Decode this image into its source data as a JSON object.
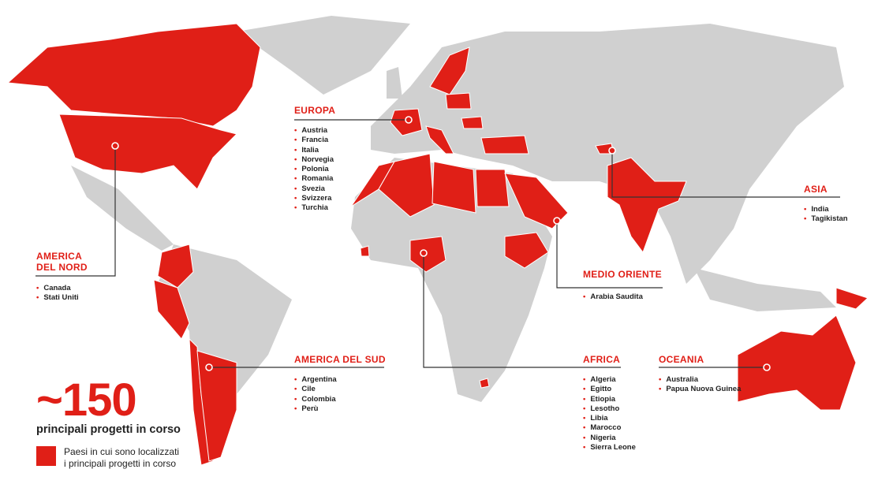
{
  "colors": {
    "highlight": "#e01f17",
    "land": "#d0d0d0",
    "line": "#333333"
  },
  "headline": {
    "value": "~150",
    "caption": "principali progetti in corso"
  },
  "legend": {
    "label_line1": "Paesi in cui sono localizzati",
    "label_line2": "i principali progetti in corso"
  },
  "regions": {
    "europa": {
      "title": "EUROPA",
      "countries": [
        "Austria",
        "Francia",
        "Italia",
        "Norvegia",
        "Polonia",
        "Romania",
        "Svezia",
        "Svizzera",
        "Turchia"
      ]
    },
    "america_nord": {
      "title_line1": "AMERICA",
      "title_line2": "DEL NORD",
      "countries": [
        "Canada",
        "Stati Uniti"
      ]
    },
    "america_sud": {
      "title": "AMERICA DEL SUD",
      "countries": [
        "Argentina",
        "Cile",
        "Colombia",
        "Perù"
      ]
    },
    "africa": {
      "title": "AFRICA",
      "countries": [
        "Algeria",
        "Egitto",
        "Etiopia",
        "Lesotho",
        "Libia",
        "Marocco",
        "Nigeria",
        "Sierra Leone"
      ]
    },
    "medio_oriente": {
      "title": "MEDIO ORIENTE",
      "countries": [
        "Arabia Saudita"
      ]
    },
    "asia": {
      "title": "ASIA",
      "countries": [
        "India",
        "Tagikistan"
      ]
    },
    "oceania": {
      "title": "OCEANIA",
      "countries": [
        "Australia",
        "Papua Nuova Guinea"
      ]
    }
  }
}
